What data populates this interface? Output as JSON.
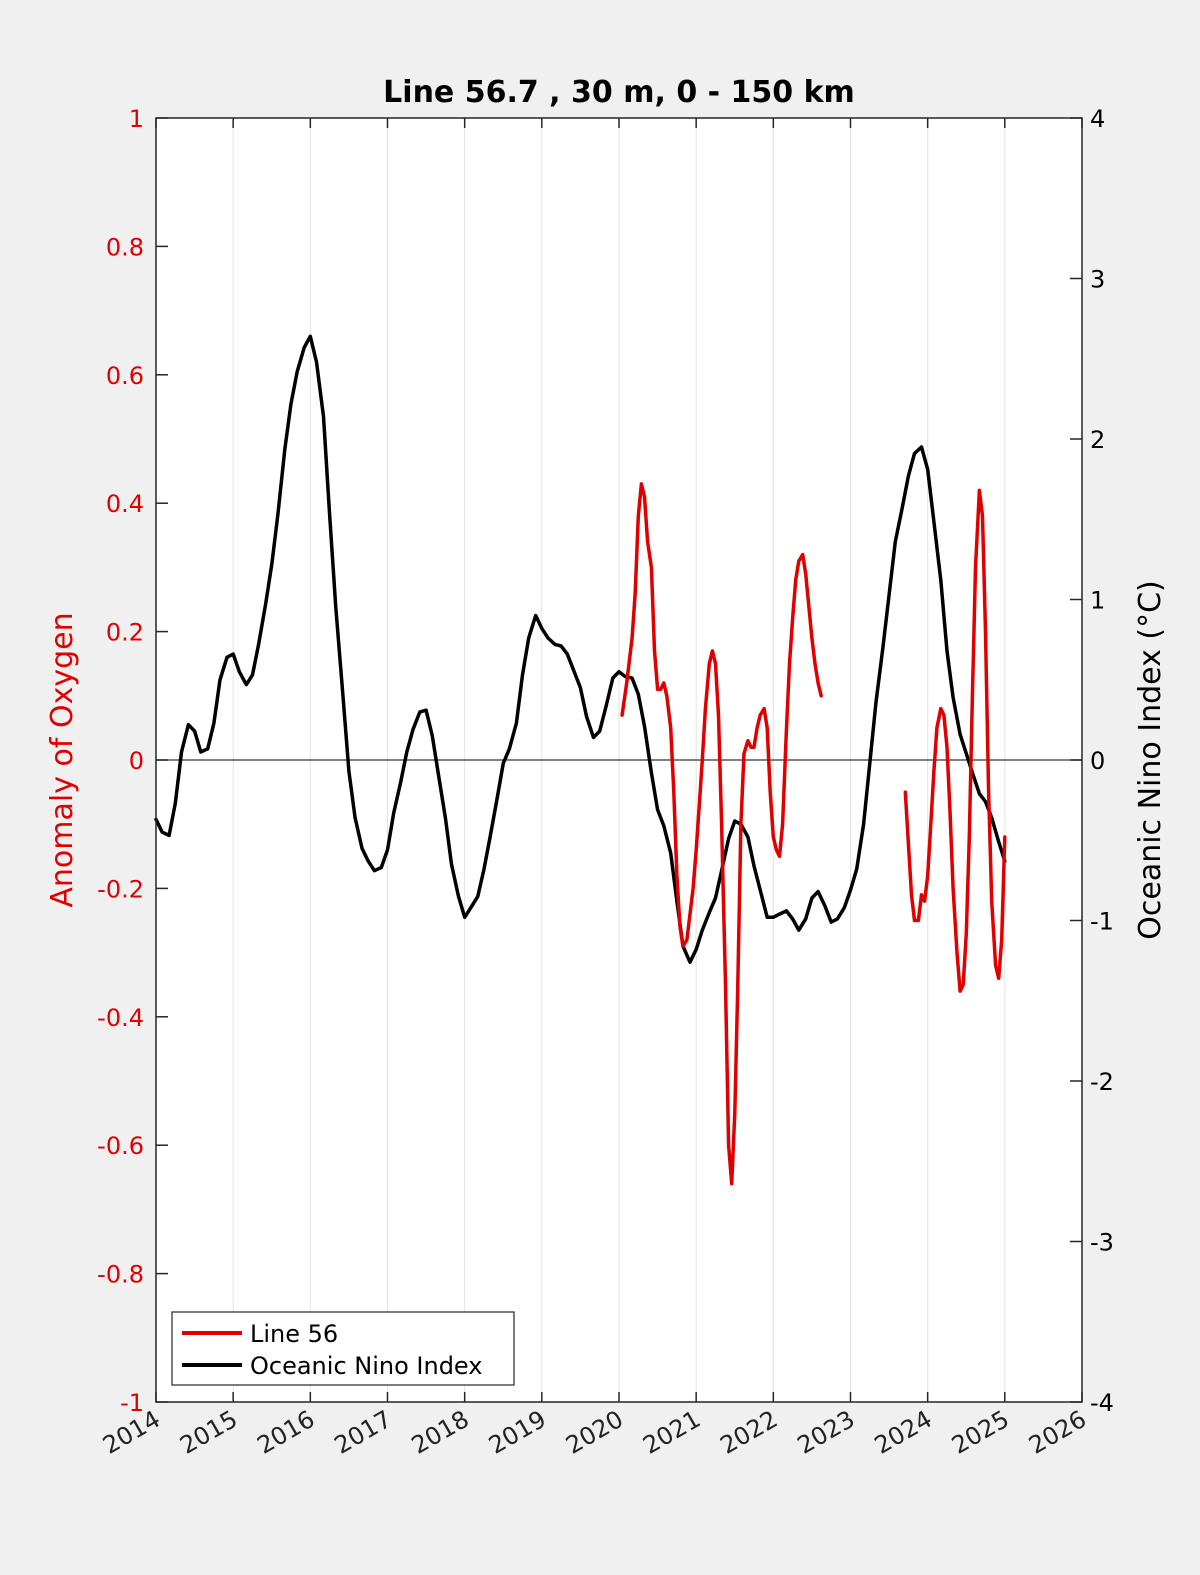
{
  "chart_data": {
    "type": "line",
    "title": "Line 56.7 , 30 m, 0 - 150 km",
    "ylabel_left": "Anomaly of Oxygen",
    "ylabel_right": "Oceanic Nino Index (°C)",
    "xlim": [
      2014,
      2026
    ],
    "ylim_left": [
      -1,
      1
    ],
    "ylim_right": [
      -4,
      4
    ],
    "x_ticks": [
      2014,
      2015,
      2016,
      2017,
      2018,
      2019,
      2020,
      2021,
      2022,
      2023,
      2024,
      2025,
      2026
    ],
    "x_tick_labels": [
      "2014",
      "2015",
      "2016",
      "2017",
      "2018",
      "2019",
      "2020",
      "2021",
      "2022",
      "2023",
      "2024",
      "2025",
      "2026"
    ],
    "y_ticks_left": [
      -1,
      -0.8,
      -0.6,
      -0.4,
      -0.2,
      0,
      0.2,
      0.4,
      0.6,
      0.8,
      1
    ],
    "y_tick_labels_left": [
      "-1",
      "-0.8",
      "-0.6",
      "-0.4",
      "-0.2",
      "0",
      "0.2",
      "0.4",
      "0.6",
      "0.8",
      "1"
    ],
    "y_ticks_right": [
      -4,
      -3,
      -2,
      -1,
      0,
      1,
      2,
      3,
      4
    ],
    "y_tick_labels_right": [
      "-4",
      "-3",
      "-2",
      "-1",
      "0",
      "1",
      "2",
      "3",
      "4"
    ],
    "grid": "vertical",
    "legend_position": "bottom-left",
    "series": [
      {
        "name": "Line 56",
        "axis": "left",
        "color": "#e00000",
        "segments": [
          {
            "x": [
              2020.04,
              2020.1,
              2020.17,
              2020.21,
              2020.25,
              2020.29,
              2020.33,
              2020.37,
              2020.42,
              2020.46,
              2020.5,
              2020.54,
              2020.58,
              2020.62,
              2020.67,
              2020.71,
              2020.75,
              2020.79,
              2020.83,
              2020.88,
              2020.92,
              2020.96,
              2021.0,
              2021.04,
              2021.08,
              2021.12,
              2021.17,
              2021.21,
              2021.25,
              2021.29,
              2021.33,
              2021.38,
              2021.42,
              2021.46,
              2021.5,
              2021.54,
              2021.58,
              2021.62,
              2021.67,
              2021.71,
              2021.75,
              2021.79,
              2021.83,
              2021.88,
              2021.92,
              2021.96,
              2022.0,
              2022.04,
              2022.08,
              2022.12,
              2022.17,
              2022.21,
              2022.25,
              2022.29,
              2022.33,
              2022.38,
              2022.42,
              2022.46,
              2022.5,
              2022.54,
              2022.58,
              2022.62,
              2022.67,
              2022.71,
              2022.75,
              2022.79,
              2022.83,
              2022.88,
              2022.92,
              2022.96,
              2023.0,
              2023.04
            ],
            "y": [
              0.07,
              0.12,
              0.19,
              0.26,
              0.38,
              0.43,
              0.41,
              0.34,
              0.3,
              0.17,
              0.11,
              0.11,
              0.12,
              0.1,
              0.05,
              -0.05,
              -0.18,
              -0.26,
              -0.29,
              -0.28,
              -0.24,
              -0.2,
              -0.14,
              -0.07,
              0.0,
              0.08,
              0.15,
              0.17,
              0.15,
              0.07,
              -0.1,
              -0.35,
              -0.6,
              -0.66,
              -0.55,
              -0.35,
              -0.1,
              0.01,
              0.03,
              0.02,
              0.02,
              0.05,
              0.07,
              0.08,
              0.05,
              -0.05,
              -0.12,
              -0.14,
              -0.15,
              -0.1,
              0.05,
              0.15,
              0.22,
              0.28,
              0.31,
              0.32,
              0.29,
              0.24,
              0.19,
              0.15,
              0.12,
              0.1,
              null,
              null,
              null,
              null,
              null,
              null,
              null,
              null,
              null,
              null
            ]
          },
          {
            "x": [
              2023.71,
              2023.75,
              2023.79,
              2023.83,
              2023.88,
              2023.92,
              2023.96,
              2024.0,
              2024.04,
              2024.08,
              2024.12,
              2024.17,
              2024.21,
              2024.25,
              2024.29,
              2024.33,
              2024.38,
              2024.42,
              2024.46,
              2024.5,
              2024.54,
              2024.58,
              2024.62,
              2024.67,
              2024.71,
              2024.75,
              2024.79,
              2024.83,
              2024.88,
              2024.92,
              2024.96,
              2025.0,
              2025.04,
              2025.08,
              2025.12
            ],
            "y": [
              -0.05,
              -0.13,
              -0.21,
              -0.25,
              -0.25,
              -0.21,
              -0.22,
              -0.18,
              -0.1,
              -0.02,
              0.05,
              0.08,
              0.07,
              0.02,
              -0.08,
              -0.2,
              -0.3,
              -0.36,
              -0.35,
              -0.27,
              -0.12,
              0.1,
              0.3,
              0.42,
              0.38,
              0.2,
              -0.05,
              -0.22,
              -0.32,
              -0.34,
              -0.28,
              -0.12,
              null,
              null,
              null
            ]
          }
        ]
      },
      {
        "name": "Oceanic Nino Index",
        "axis": "right",
        "color": "#000000",
        "x": [
          2014.0,
          2014.08,
          2014.17,
          2014.25,
          2014.33,
          2014.42,
          2014.5,
          2014.58,
          2014.67,
          2014.75,
          2014.83,
          2014.92,
          2015.0,
          2015.08,
          2015.17,
          2015.25,
          2015.33,
          2015.42,
          2015.5,
          2015.58,
          2015.67,
          2015.75,
          2015.83,
          2015.92,
          2016.0,
          2016.08,
          2016.17,
          2016.25,
          2016.33,
          2016.42,
          2016.5,
          2016.58,
          2016.67,
          2016.75,
          2016.83,
          2016.92,
          2017.0,
          2017.08,
          2017.17,
          2017.25,
          2017.33,
          2017.42,
          2017.5,
          2017.58,
          2017.67,
          2017.75,
          2017.83,
          2017.92,
          2018.0,
          2018.08,
          2018.17,
          2018.25,
          2018.33,
          2018.42,
          2018.5,
          2018.58,
          2018.67,
          2018.75,
          2018.83,
          2018.92,
          2019.0,
          2019.08,
          2019.17,
          2019.25,
          2019.33,
          2019.42,
          2019.5,
          2019.58,
          2019.67,
          2019.75,
          2019.83,
          2019.92,
          2020.0,
          2020.08,
          2020.17,
          2020.25,
          2020.33,
          2020.42,
          2020.5,
          2020.58,
          2020.67,
          2020.75,
          2020.83,
          2020.92,
          2021.0,
          2021.08,
          2021.17,
          2021.25,
          2021.33,
          2021.42,
          2021.5,
          2021.58,
          2021.67,
          2021.75,
          2021.83,
          2021.92,
          2022.0,
          2022.08,
          2022.17,
          2022.25,
          2022.33,
          2022.42,
          2022.5,
          2022.58,
          2022.67,
          2022.75,
          2022.83,
          2022.92,
          2023.0,
          2023.08,
          2023.17,
          2023.25,
          2023.33,
          2023.42,
          2023.5,
          2023.58,
          2023.67,
          2023.75,
          2023.83,
          2023.92,
          2024.0,
          2024.08,
          2024.17,
          2024.25,
          2024.33,
          2024.42,
          2024.5,
          2024.58,
          2024.67,
          2024.75,
          2024.83,
          2024.92,
          2025.0
        ],
        "y": [
          -0.37,
          -0.45,
          -0.47,
          -0.27,
          0.05,
          0.22,
          0.18,
          0.05,
          0.07,
          0.23,
          0.5,
          0.64,
          0.66,
          0.55,
          0.47,
          0.53,
          0.72,
          0.97,
          1.22,
          1.53,
          1.94,
          2.22,
          2.42,
          2.57,
          2.64,
          2.48,
          2.14,
          1.53,
          0.95,
          0.42,
          -0.07,
          -0.36,
          -0.55,
          -0.63,
          -0.69,
          -0.67,
          -0.56,
          -0.33,
          -0.14,
          0.05,
          0.19,
          0.3,
          0.31,
          0.15,
          -0.12,
          -0.36,
          -0.65,
          -0.85,
          -0.98,
          -0.92,
          -0.85,
          -0.68,
          -0.48,
          -0.24,
          -0.02,
          0.07,
          0.23,
          0.53,
          0.76,
          0.9,
          0.82,
          0.76,
          0.72,
          0.71,
          0.66,
          0.55,
          0.45,
          0.27,
          0.14,
          0.18,
          0.33,
          0.51,
          0.55,
          0.52,
          0.51,
          0.41,
          0.21,
          -0.08,
          -0.31,
          -0.41,
          -0.58,
          -0.88,
          -1.16,
          -1.26,
          -1.18,
          -1.06,
          -0.95,
          -0.86,
          -0.69,
          -0.49,
          -0.38,
          -0.4,
          -0.48,
          -0.66,
          -0.81,
          -0.98,
          -0.98,
          -0.96,
          -0.94,
          -0.99,
          -1.06,
          -0.99,
          -0.86,
          -0.82,
          -0.91,
          -1.01,
          -0.99,
          -0.92,
          -0.81,
          -0.68,
          -0.4,
          -0.02,
          0.36,
          0.7,
          1.03,
          1.36,
          1.57,
          1.77,
          1.91,
          1.95,
          1.81,
          1.49,
          1.12,
          0.68,
          0.39,
          0.16,
          0.04,
          -0.08,
          -0.21,
          -0.26,
          -0.36,
          -0.51,
          -0.63
        ]
      }
    ]
  }
}
